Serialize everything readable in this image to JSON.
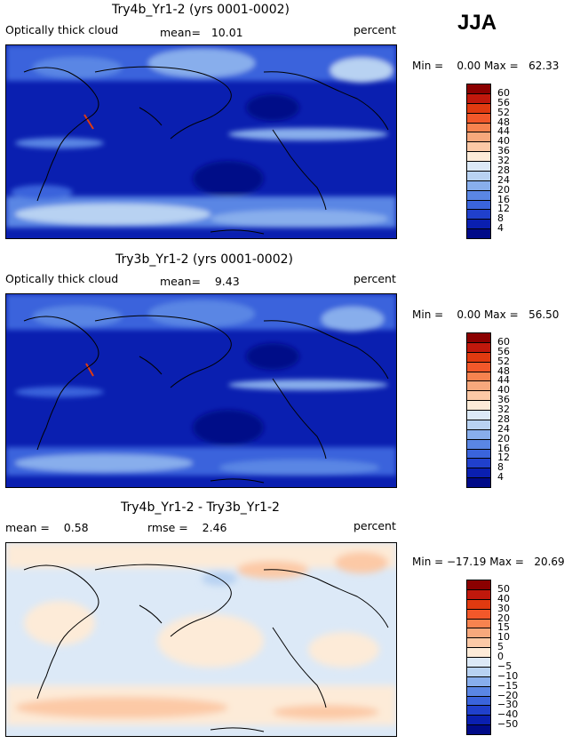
{
  "season": "JJA",
  "panels": [
    {
      "title": "Try4b_Yr1-2 (yrs 0001-0002)",
      "left_label": "Optically thick cloud",
      "mid_label": "mean=   10.01",
      "right_label": "percent",
      "minmax": "Min =    0.00 Max =   62.33"
    },
    {
      "title": "Try3b_Yr1-2 (yrs 0001-0002)",
      "left_label": "Optically thick cloud",
      "mid_label": "mean=    9.43",
      "right_label": "percent",
      "minmax": "Min =    0.00 Max =   56.50"
    },
    {
      "title": "Try4b_Yr1-2 - Try3b_Yr1-2",
      "left_label": "mean =    0.58",
      "mid_label": "rmse =    2.46",
      "right_label": "percent",
      "minmax": "Min = −17.19 Max =   20.69"
    }
  ],
  "colorbars": [
    {
      "labels": [
        "60",
        "56",
        "52",
        "48",
        "44",
        "40",
        "36",
        "32",
        "28",
        "24",
        "20",
        "16",
        "12",
        "8",
        "4"
      ],
      "colors": [
        "#8b0000",
        "#c0180c",
        "#e03a10",
        "#f2582a",
        "#f7834f",
        "#f7a87c",
        "#fcc9a6",
        "#fdebd8",
        "#dce9f7",
        "#b8d2f2",
        "#88aeec",
        "#5a86e4",
        "#3a64dc",
        "#2040cc",
        "#0a1fb0",
        "#000a88"
      ]
    },
    {
      "labels": [
        "60",
        "56",
        "52",
        "48",
        "44",
        "40",
        "36",
        "32",
        "28",
        "24",
        "20",
        "16",
        "12",
        "8",
        "4"
      ],
      "colors": [
        "#8b0000",
        "#c0180c",
        "#e03a10",
        "#f2582a",
        "#f7834f",
        "#f7a87c",
        "#fcc9a6",
        "#fdebd8",
        "#dce9f7",
        "#b8d2f2",
        "#88aeec",
        "#5a86e4",
        "#3a64dc",
        "#2040cc",
        "#0a1fb0",
        "#000a88"
      ]
    },
    {
      "labels": [
        "50",
        "40",
        "30",
        "20",
        "15",
        "10",
        "5",
        "0",
        "−5",
        "−10",
        "−15",
        "−20",
        "−30",
        "−40",
        "−50"
      ],
      "colors": [
        "#8b0000",
        "#c0180c",
        "#e03a10",
        "#f2582a",
        "#f7834f",
        "#f7a87c",
        "#fcc9a6",
        "#fdebd8",
        "#dce9f7",
        "#b8d2f2",
        "#88aeec",
        "#5a86e4",
        "#3a64dc",
        "#2040cc",
        "#0a1fb0",
        "#000a88"
      ]
    }
  ],
  "chart_data": [
    {
      "type": "heatmap",
      "title": "Try4b_Yr1-2 (yrs 0001-0002)",
      "variable": "Optically thick cloud",
      "units": "percent",
      "season": "JJA",
      "mean": 10.01,
      "min": 0.0,
      "max": 62.33,
      "contour_levels": [
        4,
        8,
        12,
        16,
        20,
        24,
        28,
        32,
        36,
        40,
        44,
        48,
        52,
        56,
        60
      ]
    },
    {
      "type": "heatmap",
      "title": "Try3b_Yr1-2 (yrs 0001-0002)",
      "variable": "Optically thick cloud",
      "units": "percent",
      "season": "JJA",
      "mean": 9.43,
      "min": 0.0,
      "max": 56.5,
      "contour_levels": [
        4,
        8,
        12,
        16,
        20,
        24,
        28,
        32,
        36,
        40,
        44,
        48,
        52,
        56,
        60
      ]
    },
    {
      "type": "heatmap",
      "title": "Try4b_Yr1-2 - Try3b_Yr1-2",
      "units": "percent",
      "season": "JJA",
      "mean": 0.58,
      "rmse": 2.46,
      "min": -17.19,
      "max": 20.69,
      "contour_levels": [
        -50,
        -40,
        -30,
        -20,
        -15,
        -10,
        -5,
        0,
        5,
        10,
        15,
        20,
        30,
        40,
        50
      ]
    }
  ]
}
